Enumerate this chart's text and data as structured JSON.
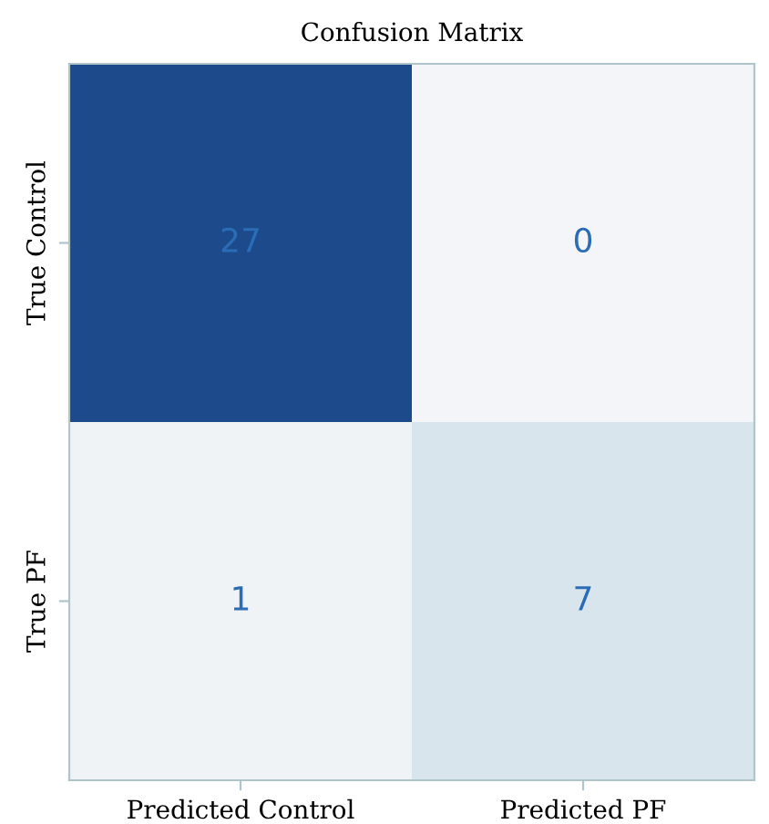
{
  "chart_data": {
    "type": "heatmap",
    "title": "Confusion Matrix",
    "categories": [
      "Predicted Control",
      "Predicted PF"
    ],
    "y_categories": [
      "True Control",
      "True PF"
    ],
    "cells": [
      [
        27,
        0
      ],
      [
        1,
        7
      ]
    ],
    "data_labels": true
  }
}
